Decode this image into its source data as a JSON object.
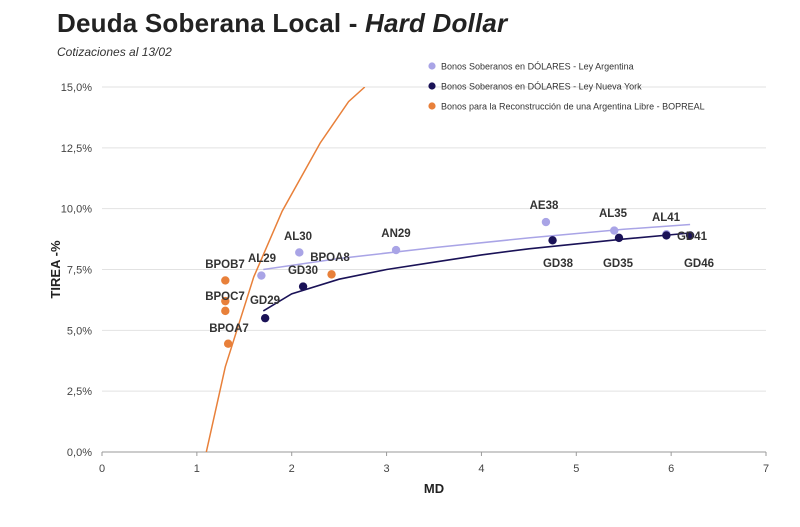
{
  "header": {
    "title_main": "Deuda Soberana Local - ",
    "title_italic": "Hard Dollar",
    "subtitle": "Cotizaciones al 13/02"
  },
  "chart_data": {
    "type": "scatter",
    "title": "Deuda Soberana Local - Hard Dollar",
    "subtitle": "Cotizaciones al 13/02",
    "xlabel": "MD",
    "ylabel": "TIREA -%",
    "xlim": [
      0,
      7
    ],
    "ylim": [
      0,
      15
    ],
    "x_ticks": [
      "0",
      "1",
      "2",
      "3",
      "4",
      "5",
      "6",
      "7"
    ],
    "y_ticks": [
      "0,0%",
      "2,5%",
      "5,0%",
      "7,5%",
      "10,0%",
      "12,5%",
      "15,0%"
    ],
    "grid": "horizontal",
    "legend_position": "top-right",
    "series": [
      {
        "name": "Bonos Soberanos en DÓLARES - Ley Argentina",
        "color": "#a9a4e6",
        "points": [
          {
            "label": "AL29",
            "x": 1.68,
            "y": 7.25
          },
          {
            "label": "AL30",
            "x": 2.08,
            "y": 8.2
          },
          {
            "label": "AN29",
            "x": 3.1,
            "y": 8.3
          },
          {
            "label": "AE38",
            "x": 4.68,
            "y": 9.45
          },
          {
            "label": "AL35",
            "x": 5.4,
            "y": 9.1
          },
          {
            "label": "AL41",
            "x": 5.95,
            "y": 8.95
          }
        ],
        "trendline": [
          [
            1.7,
            7.5
          ],
          [
            2.5,
            7.95
          ],
          [
            3.5,
            8.4
          ],
          [
            4.5,
            8.8
          ],
          [
            5.5,
            9.15
          ],
          [
            6.2,
            9.35
          ]
        ]
      },
      {
        "name": "Bonos Soberanos en DÓLARES - Ley Nueva York",
        "color": "#1a1257",
        "points": [
          {
            "label": "GD29",
            "x": 1.72,
            "y": 5.5
          },
          {
            "label": "GD30",
            "x": 2.12,
            "y": 6.8
          },
          {
            "label": "GD38",
            "x": 4.75,
            "y": 8.7
          },
          {
            "label": "GD35",
            "x": 5.45,
            "y": 8.8
          },
          {
            "label": "GD41",
            "x": 5.95,
            "y": 8.9
          },
          {
            "label": "GD46",
            "x": 6.2,
            "y": 8.9
          }
        ],
        "trendline": [
          [
            1.7,
            5.8
          ],
          [
            2.0,
            6.5
          ],
          [
            2.5,
            7.1
          ],
          [
            3.0,
            7.5
          ],
          [
            3.5,
            7.8
          ],
          [
            4.0,
            8.1
          ],
          [
            4.5,
            8.35
          ],
          [
            5.0,
            8.55
          ],
          [
            5.5,
            8.75
          ],
          [
            6.2,
            9.0
          ]
        ]
      },
      {
        "name": "Bonos para la Reconstrucción de una Argentina Libre - BOPREAL",
        "color": "#e8803a",
        "points": [
          {
            "label": "BPOB7",
            "x": 1.3,
            "y": 7.05
          },
          {
            "label": "BPOC7",
            "x": 1.3,
            "y": 6.2
          },
          {
            "label": "BPOC7b",
            "x": 1.3,
            "y": 5.8
          },
          {
            "label": "BPOA7",
            "x": 1.33,
            "y": 4.45
          },
          {
            "label": "BPOA8",
            "x": 2.42,
            "y": 7.3
          }
        ],
        "trendline": [
          [
            1.1,
            0.0
          ],
          [
            1.3,
            3.5
          ],
          [
            1.6,
            7.2
          ],
          [
            1.9,
            9.9
          ],
          [
            2.3,
            12.7
          ],
          [
            2.6,
            14.4
          ],
          [
            2.77,
            15.0
          ]
        ]
      }
    ],
    "point_labels": [
      {
        "text": "AL29"
      },
      {
        "text": "AL30"
      },
      {
        "text": "AN29"
      },
      {
        "text": "AE38"
      },
      {
        "text": "AL35"
      },
      {
        "text": "AL41"
      },
      {
        "text": "GD41"
      },
      {
        "text": "GD29"
      },
      {
        "text": "GD30"
      },
      {
        "text": "GD38"
      },
      {
        "text": "GD35"
      },
      {
        "text": "GD46"
      },
      {
        "text": "BPOB7"
      },
      {
        "text": "BPOC7"
      },
      {
        "text": "BPOA7"
      },
      {
        "text": "BPOA8"
      }
    ]
  }
}
